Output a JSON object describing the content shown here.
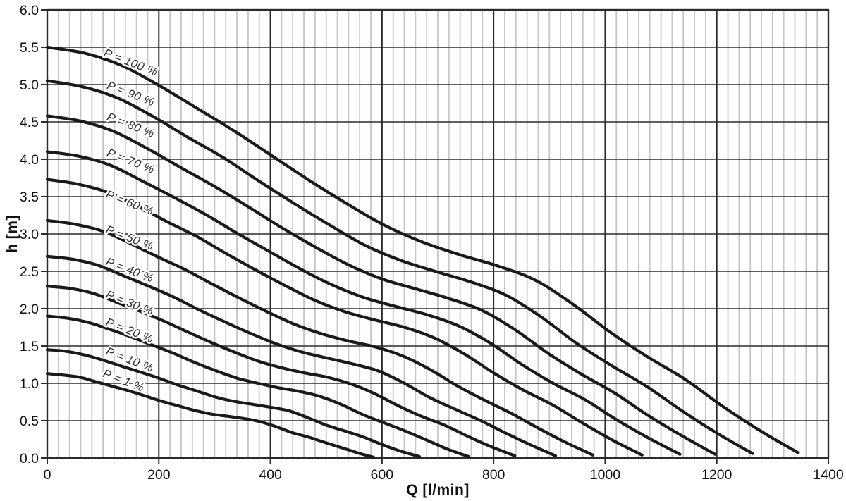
{
  "chart_data": {
    "type": "line",
    "title": "",
    "xlabel": "Q [l/min]",
    "ylabel": "h [m]",
    "xlim": [
      0,
      1400
    ],
    "ylim": [
      0,
      6.0
    ],
    "x_major_step": 200,
    "x_minor_step": 20,
    "y_major_step": 0.5,
    "grid": "minor vertical light-gray every 20; major vertical dark every 200; horizontal dark every 0.5; closed frame",
    "legend_position": "inline-curve-labels",
    "x_tick_labels": [
      "0",
      "200",
      "400",
      "600",
      "800",
      "1000",
      "1200",
      "1400"
    ],
    "y_tick_labels": [
      "0.0",
      "0.5",
      "1.0",
      "1.5",
      "2.0",
      "2.5",
      "3.0",
      "3.5",
      "4.0",
      "4.5",
      "5.0",
      "5.5",
      "6.0"
    ],
    "colors": {
      "curve": "#1a1a1a",
      "grid_minor": "#c6c6c6",
      "grid_major": "#2b2b2b",
      "frame": "#2b2b2b",
      "text": "#111111",
      "curve_label": "#2b2b2b",
      "background": "#ffffff"
    },
    "curve_label_rotation_deg": 21,
    "series": [
      {
        "name": "P = 100 %",
        "pump_capacity_pct": 100,
        "label_q": 150,
        "label_h": 5.3,
        "points": [
          [
            0,
            5.5
          ],
          [
            67,
            5.42
          ],
          [
            135,
            5.25
          ],
          [
            202,
            4.98
          ],
          [
            269,
            4.68
          ],
          [
            337,
            4.37
          ],
          [
            404,
            4.04
          ],
          [
            471,
            3.71
          ],
          [
            538,
            3.4
          ],
          [
            606,
            3.11
          ],
          [
            673,
            2.89
          ],
          [
            740,
            2.72
          ],
          [
            808,
            2.57
          ],
          [
            875,
            2.38
          ],
          [
            942,
            2.06
          ],
          [
            1010,
            1.68
          ],
          [
            1077,
            1.35
          ],
          [
            1144,
            1.05
          ],
          [
            1211,
            0.69
          ],
          [
            1279,
            0.36
          ],
          [
            1346,
            0.07
          ]
        ]
      },
      {
        "name": "P = 90 %",
        "pump_capacity_pct": 90,
        "label_q": 150,
        "label_h": 4.88,
        "points": [
          [
            0,
            5.05
          ],
          [
            63,
            4.97
          ],
          [
            126,
            4.82
          ],
          [
            190,
            4.57
          ],
          [
            253,
            4.29
          ],
          [
            316,
            4.02
          ],
          [
            379,
            3.71
          ],
          [
            442,
            3.41
          ],
          [
            506,
            3.12
          ],
          [
            569,
            2.85
          ],
          [
            632,
            2.65
          ],
          [
            695,
            2.5
          ],
          [
            758,
            2.36
          ],
          [
            822,
            2.18
          ],
          [
            885,
            1.89
          ],
          [
            948,
            1.54
          ],
          [
            1011,
            1.24
          ],
          [
            1074,
            0.96
          ],
          [
            1138,
            0.63
          ],
          [
            1201,
            0.33
          ],
          [
            1264,
            0.06
          ]
        ]
      },
      {
        "name": "P = 80 %",
        "pump_capacity_pct": 80,
        "label_q": 150,
        "label_h": 4.46,
        "points": [
          [
            0,
            4.58
          ],
          [
            60,
            4.51
          ],
          [
            120,
            4.37
          ],
          [
            180,
            4.14
          ],
          [
            239,
            3.89
          ],
          [
            299,
            3.64
          ],
          [
            359,
            3.37
          ],
          [
            419,
            3.09
          ],
          [
            479,
            2.83
          ],
          [
            539,
            2.59
          ],
          [
            599,
            2.4
          ],
          [
            658,
            2.27
          ],
          [
            718,
            2.14
          ],
          [
            778,
            1.98
          ],
          [
            838,
            1.72
          ],
          [
            898,
            1.4
          ],
          [
            958,
            1.12
          ],
          [
            1017,
            0.87
          ],
          [
            1077,
            0.57
          ],
          [
            1137,
            0.3
          ],
          [
            1197,
            0.05
          ]
        ]
      },
      {
        "name": "P = 70 %",
        "pump_capacity_pct": 70,
        "label_q": 150,
        "label_h": 3.98,
        "points": [
          [
            0,
            4.1
          ],
          [
            57,
            4.04
          ],
          [
            113,
            3.92
          ],
          [
            170,
            3.71
          ],
          [
            227,
            3.49
          ],
          [
            284,
            3.26
          ],
          [
            340,
            3.01
          ],
          [
            397,
            2.77
          ],
          [
            454,
            2.53
          ],
          [
            510,
            2.32
          ],
          [
            567,
            2.15
          ],
          [
            624,
            2.03
          ],
          [
            680,
            1.92
          ],
          [
            737,
            1.77
          ],
          [
            794,
            1.54
          ],
          [
            851,
            1.25
          ],
          [
            907,
            1.0
          ],
          [
            964,
            0.78
          ],
          [
            1021,
            0.51
          ],
          [
            1077,
            0.27
          ],
          [
            1134,
            0.05
          ]
        ]
      },
      {
        "name": "P = 60 %",
        "pump_capacity_pct": 60,
        "label_q": 148,
        "label_h": 3.42,
        "points": [
          [
            0,
            3.73
          ],
          [
            53,
            3.67
          ],
          [
            107,
            3.56
          ],
          [
            160,
            3.38
          ],
          [
            213,
            3.17
          ],
          [
            267,
            2.97
          ],
          [
            320,
            2.74
          ],
          [
            373,
            2.52
          ],
          [
            426,
            2.31
          ],
          [
            480,
            2.11
          ],
          [
            533,
            1.96
          ],
          [
            586,
            1.85
          ],
          [
            640,
            1.75
          ],
          [
            693,
            1.61
          ],
          [
            746,
            1.4
          ],
          [
            800,
            1.14
          ],
          [
            853,
            0.91
          ],
          [
            906,
            0.71
          ],
          [
            959,
            0.47
          ],
          [
            1013,
            0.24
          ],
          [
            1066,
            0.04
          ]
        ]
      },
      {
        "name": "P = 50 %",
        "pump_capacity_pct": 50,
        "label_q": 148,
        "label_h": 2.95,
        "points": [
          [
            0,
            3.18
          ],
          [
            49,
            3.13
          ],
          [
            98,
            3.04
          ],
          [
            147,
            2.88
          ],
          [
            196,
            2.7
          ],
          [
            245,
            2.53
          ],
          [
            293,
            2.34
          ],
          [
            342,
            2.15
          ],
          [
            391,
            1.97
          ],
          [
            440,
            1.8
          ],
          [
            489,
            1.67
          ],
          [
            538,
            1.57
          ],
          [
            587,
            1.49
          ],
          [
            636,
            1.37
          ],
          [
            685,
            1.19
          ],
          [
            734,
            0.97
          ],
          [
            782,
            0.78
          ],
          [
            831,
            0.6
          ],
          [
            880,
            0.4
          ],
          [
            929,
            0.21
          ],
          [
            978,
            0.04
          ]
        ]
      },
      {
        "name": "P = 40 %",
        "pump_capacity_pct": 40,
        "label_q": 148,
        "label_h": 2.52,
        "points": [
          [
            0,
            2.7
          ],
          [
            46,
            2.66
          ],
          [
            91,
            2.58
          ],
          [
            137,
            2.44
          ],
          [
            182,
            2.3
          ],
          [
            228,
            2.15
          ],
          [
            273,
            1.98
          ],
          [
            319,
            1.82
          ],
          [
            364,
            1.67
          ],
          [
            410,
            1.53
          ],
          [
            456,
            1.42
          ],
          [
            501,
            1.34
          ],
          [
            547,
            1.26
          ],
          [
            592,
            1.17
          ],
          [
            638,
            1.01
          ],
          [
            683,
            0.82
          ],
          [
            729,
            0.66
          ],
          [
            774,
            0.51
          ],
          [
            820,
            0.34
          ],
          [
            865,
            0.18
          ],
          [
            911,
            0.03
          ]
        ]
      },
      {
        "name": "P = 30 %",
        "pump_capacity_pct": 30,
        "label_q": 148,
        "label_h": 2.08,
        "points": [
          [
            0,
            2.3
          ],
          [
            42,
            2.27
          ],
          [
            84,
            2.2
          ],
          [
            126,
            2.08
          ],
          [
            168,
            1.96
          ],
          [
            210,
            1.83
          ],
          [
            251,
            1.69
          ],
          [
            293,
            1.55
          ],
          [
            335,
            1.42
          ],
          [
            377,
            1.3
          ],
          [
            419,
            1.21
          ],
          [
            461,
            1.14
          ],
          [
            503,
            1.08
          ],
          [
            545,
            0.99
          ],
          [
            587,
            0.86
          ],
          [
            629,
            0.7
          ],
          [
            670,
            0.56
          ],
          [
            712,
            0.44
          ],
          [
            754,
            0.29
          ],
          [
            796,
            0.15
          ],
          [
            838,
            0.03
          ]
        ]
      },
      {
        "name": "P = 20 %",
        "pump_capacity_pct": 20,
        "label_q": 148,
        "label_h": 1.71,
        "points": [
          [
            0,
            1.9
          ],
          [
            38,
            1.87
          ],
          [
            76,
            1.81
          ],
          [
            113,
            1.72
          ],
          [
            151,
            1.62
          ],
          [
            189,
            1.51
          ],
          [
            227,
            1.4
          ],
          [
            264,
            1.28
          ],
          [
            302,
            1.17
          ],
          [
            340,
            1.07
          ],
          [
            378,
            1.0
          ],
          [
            415,
            0.94
          ],
          [
            453,
            0.89
          ],
          [
            491,
            0.82
          ],
          [
            529,
            0.71
          ],
          [
            566,
            0.58
          ],
          [
            604,
            0.47
          ],
          [
            642,
            0.36
          ],
          [
            680,
            0.24
          ],
          [
            717,
            0.12
          ],
          [
            755,
            0.02
          ]
        ]
      },
      {
        "name": "P = 10 %",
        "pump_capacity_pct": 10,
        "label_q": 148,
        "label_h": 1.32,
        "points": [
          [
            0,
            1.45
          ],
          [
            33,
            1.43
          ],
          [
            67,
            1.38
          ],
          [
            100,
            1.31
          ],
          [
            133,
            1.23
          ],
          [
            167,
            1.15
          ],
          [
            200,
            1.07
          ],
          [
            233,
            0.98
          ],
          [
            267,
            0.9
          ],
          [
            300,
            0.82
          ],
          [
            334,
            0.76
          ],
          [
            367,
            0.72
          ],
          [
            400,
            0.68
          ],
          [
            434,
            0.63
          ],
          [
            467,
            0.54
          ],
          [
            500,
            0.44
          ],
          [
            534,
            0.36
          ],
          [
            567,
            0.28
          ],
          [
            600,
            0.18
          ],
          [
            634,
            0.09
          ],
          [
            667,
            0.02
          ]
        ]
      },
      {
        "name": "P = 1 %",
        "pump_capacity_pct": 1,
        "label_q": 137,
        "label_h": 1.04,
        "points": [
          [
            0,
            1.13
          ],
          [
            29,
            1.11
          ],
          [
            59,
            1.08
          ],
          [
            88,
            1.02
          ],
          [
            117,
            0.96
          ],
          [
            146,
            0.9
          ],
          [
            176,
            0.83
          ],
          [
            205,
            0.76
          ],
          [
            234,
            0.7
          ],
          [
            263,
            0.64
          ],
          [
            293,
            0.59
          ],
          [
            322,
            0.56
          ],
          [
            351,
            0.53
          ],
          [
            380,
            0.49
          ],
          [
            410,
            0.42
          ],
          [
            439,
            0.34
          ],
          [
            468,
            0.28
          ],
          [
            497,
            0.21
          ],
          [
            527,
            0.14
          ],
          [
            556,
            0.07
          ],
          [
            585,
            0.01
          ]
        ]
      }
    ]
  }
}
